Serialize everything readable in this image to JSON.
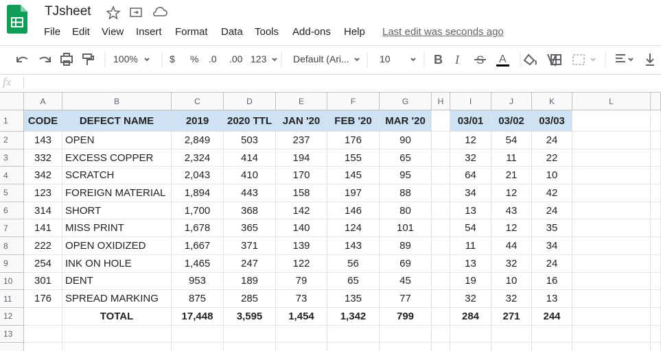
{
  "app": {
    "title": "TJsheet",
    "menu": [
      "File",
      "Edit",
      "View",
      "Insert",
      "Format",
      "Data",
      "Tools",
      "Add-ons",
      "Help"
    ],
    "last_edit": "Last edit was seconds ago"
  },
  "toolbar": {
    "zoom": "100%",
    "currency": "$",
    "percent": "%",
    "decrease_decimal": ".0",
    "increase_decimal": ".00",
    "number_format": "123",
    "font": "Default (Ari...",
    "font_size": "10"
  },
  "formula_bar": {
    "label": "fx"
  },
  "sheet": {
    "columns": [
      "A",
      "B",
      "C",
      "D",
      "E",
      "F",
      "G",
      "H",
      "I",
      "J",
      "K",
      "L"
    ],
    "row_numbers": [
      "1",
      "2",
      "3",
      "4",
      "5",
      "6",
      "7",
      "8",
      "9",
      "10",
      "11",
      "12",
      "13"
    ],
    "rows": [
      [
        "CODE",
        "DEFECT NAME",
        "2019",
        "2020 TTL",
        "JAN '20",
        "FEB '20",
        "MAR '20",
        null,
        "03/01",
        "03/02",
        "03/03"
      ],
      [
        "143",
        "OPEN",
        "2,849",
        "503",
        "237",
        "176",
        "90",
        null,
        "12",
        "54",
        "24"
      ],
      [
        "332",
        "EXCESS COPPER",
        "2,324",
        "414",
        "194",
        "155",
        "65",
        null,
        "32",
        "11",
        "22"
      ],
      [
        "342",
        "SCRATCH",
        "2,043",
        "410",
        "170",
        "145",
        "95",
        null,
        "64",
        "21",
        "10"
      ],
      [
        "123",
        "FOREIGN MATERIAL",
        "1,894",
        "443",
        "158",
        "197",
        "88",
        null,
        "34",
        "12",
        "42"
      ],
      [
        "314",
        "SHORT",
        "1,700",
        "368",
        "142",
        "146",
        "80",
        null,
        "13",
        "43",
        "24"
      ],
      [
        "141",
        "MISS PRINT",
        "1,678",
        "365",
        "140",
        "124",
        "101",
        null,
        "54",
        "12",
        "35"
      ],
      [
        "222",
        "OPEN OXIDIZED",
        "1,667",
        "371",
        "139",
        "143",
        "89",
        null,
        "11",
        "44",
        "34"
      ],
      [
        "254",
        "INK ON HOLE",
        "1,465",
        "247",
        "122",
        "56",
        "69",
        null,
        "13",
        "32",
        "24"
      ],
      [
        "301",
        "DENT",
        "953",
        "189",
        "79",
        "65",
        "45",
        null,
        "19",
        "10",
        "16"
      ],
      [
        "176",
        "SPREAD MARKING",
        "875",
        "285",
        "73",
        "135",
        "77",
        null,
        "32",
        "32",
        "13"
      ],
      [
        null,
        "TOTAL",
        "17,448",
        "3,595",
        "1,454",
        "1,342",
        "799",
        null,
        "284",
        "271",
        "244"
      ]
    ]
  }
}
